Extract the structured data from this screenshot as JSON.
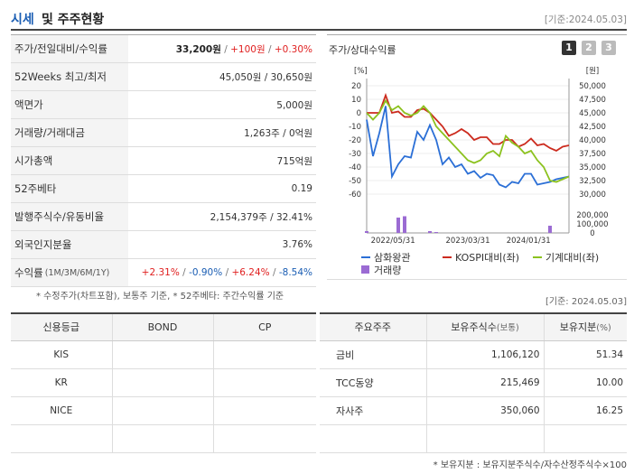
{
  "header": {
    "title_main": "시세",
    "title_rest": "및 주주현황",
    "date": "[기준:2024.05.03]"
  },
  "stats": [
    {
      "label": "주가/전일대비/수익률",
      "price": "33,200원",
      "sep1": " / ",
      "change": "+100원",
      "sep2": " / ",
      "rate": "+0.30%"
    },
    {
      "label": "52Weeks 최고/최저",
      "value": "45,050원 / 30,650원"
    },
    {
      "label": "액면가",
      "value": "5,000원"
    },
    {
      "label": "거래량/거래대금",
      "value": "1,263주 / 0억원"
    },
    {
      "label": "시가총액",
      "value": "715억원"
    },
    {
      "label": "52주베타",
      "value": "0.19"
    },
    {
      "label": "발행주식수/유동비율",
      "value": "2,154,379주 / 32.41%"
    },
    {
      "label": "외국인지분율",
      "value": "3.76%"
    },
    {
      "label": "수익률",
      "sub": "(1M/3M/6M/1Y)",
      "r1": "+2.31%",
      "r2": "-0.90%",
      "r3": "+6.24%",
      "r4": "-8.54%",
      "sep": "/ "
    }
  ],
  "footnote1": "* 수정주가(차트포함), 보통주 기준, * 52주베타: 주간수익률 기준",
  "chart_box": {
    "title": "주가/상대수익률",
    "tabs": [
      "1",
      "2",
      "3"
    ]
  },
  "chart_data": {
    "type": "line",
    "left_unit": "[%]",
    "right_unit": "[원]",
    "left_ticks": [
      "20",
      "10",
      "0",
      "-10",
      "-20",
      "-30",
      "-40",
      "-50",
      "-60"
    ],
    "right_ticks": [
      "50,000",
      "47,500",
      "45,000",
      "42,500",
      "40,000",
      "37,500",
      "35,000",
      "32,500",
      "30,000"
    ],
    "vol_ticks": [
      "200,000",
      "100,000",
      "0"
    ],
    "x_ticks": [
      "2022/05/31",
      "2023/03/31",
      "2024/01/31"
    ],
    "ylim_left": [
      -60,
      20
    ],
    "series": [
      {
        "name": "삼화왕관",
        "color": "#2b6fd6",
        "values": [
          -5,
          -32,
          -15,
          5,
          -47,
          -38,
          -32,
          -33,
          -14,
          -20,
          -9,
          -20,
          -38,
          -33,
          -40,
          -38,
          -45,
          -43,
          -48,
          -45,
          -46,
          -53,
          -55,
          -51,
          -52,
          -45,
          -45,
          -53,
          -52,
          -51,
          -49,
          -48,
          -47
        ]
      },
      {
        "name": "KOSPI대비(좌)",
        "color": "#cc2b1e",
        "values": [
          0,
          0,
          0,
          13,
          0,
          1,
          -3,
          -3,
          2,
          3,
          0,
          -5,
          -10,
          -17,
          -15,
          -12,
          -15,
          -20,
          -18,
          -18,
          -23,
          -23,
          -20,
          -20,
          -25,
          -23,
          -19,
          -24,
          -23,
          -26,
          -28,
          -25,
          -24
        ]
      },
      {
        "name": "기계대비(좌)",
        "color": "#8cc21f",
        "values": [
          0,
          -5,
          0,
          9,
          2,
          5,
          0,
          -2,
          0,
          5,
          0,
          -10,
          -15,
          -20,
          -25,
          -30,
          -35,
          -37,
          -35,
          -30,
          -28,
          -32,
          -17,
          -22,
          -25,
          -30,
          -28,
          -35,
          -40,
          -50,
          -51,
          -49,
          -47
        ]
      },
      {
        "name": "거래량",
        "color": "#9b6bd3",
        "type": "bar",
        "volume": [
          20000,
          0,
          0,
          0,
          0,
          170000,
          185000,
          0,
          0,
          0,
          20000,
          10000,
          0,
          0,
          0,
          0,
          0,
          0,
          0,
          0,
          0,
          0,
          0,
          0,
          0,
          0,
          0,
          0,
          0,
          80000,
          0,
          0,
          0
        ]
      }
    ],
    "legend": [
      "삼화왕관",
      "KOSPI대비(좌)",
      "기계대비(좌)",
      "거래량"
    ]
  },
  "date2": "[기준: 2024.05.03]",
  "credit": {
    "headers": [
      "신용등급",
      "BOND",
      "CP"
    ],
    "rows": [
      [
        "KIS",
        "",
        ""
      ],
      [
        "KR",
        "",
        ""
      ],
      [
        "NICE",
        "",
        ""
      ],
      [
        "",
        "",
        ""
      ]
    ]
  },
  "holders": {
    "headers": [
      "주요주주",
      "보유주식수",
      "(보통)",
      "보유지분",
      "(%)"
    ],
    "rows": [
      [
        "금비",
        "1,106,120",
        "51.34"
      ],
      [
        "TCC동양",
        "215,469",
        "10.00"
      ],
      [
        "자사주",
        "350,060",
        "16.25"
      ],
      [
        "",
        "",
        ""
      ]
    ]
  },
  "footnote2": "* 보유지분 : 보유지분주식수/자수산정주식수×100"
}
